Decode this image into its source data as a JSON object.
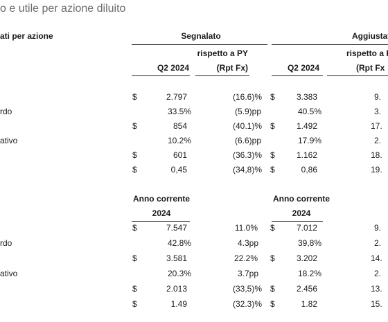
{
  "title": "o e utile per azione diluito",
  "header": {
    "row_label": "ati per azione",
    "reported": "Segnalato",
    "adjusted": "Aggiustato",
    "vs_py_line1": "rispetto a PY",
    "vs_py_line2": "(Rpt Fx)",
    "vs_py_line1_adj": "rispetto a P",
    "vs_py_line2_adj": "(Rpt Fx",
    "q2": "Q2 2024",
    "q2_adj": "Q2 2024"
  },
  "section1": {
    "rows": [
      {
        "label": "",
        "cur1": "$",
        "rep": "2.797",
        "chg": "(16.6)%",
        "cur2": "$",
        "adj": "3.383",
        "adjchg": "9."
      },
      {
        "label": "rdo",
        "cur1": "",
        "rep": "33.5%",
        "chg": "(5.9)pp",
        "cur2": "",
        "adj": "40.5%",
        "adjchg": "3."
      },
      {
        "label": "",
        "cur1": "$",
        "rep": "854",
        "chg": "(40.1)%",
        "cur2": "$",
        "adj": "1.492",
        "adjchg": "17."
      },
      {
        "label": "ativo",
        "cur1": "",
        "rep": "10.2%",
        "chg": "(6.6)pp",
        "cur2": "",
        "adj": "17.9%",
        "adjchg": "2."
      },
      {
        "label": "",
        "cur1": "$",
        "rep": "601",
        "chg": "(36.3)%",
        "cur2": "$",
        "adj": "1.162",
        "adjchg": "18."
      },
      {
        "label": "",
        "cur1": "$",
        "rep": "0,45",
        "chg": "(34,8)%",
        "cur2": "$",
        "adj": "0,86",
        "adjchg": "19."
      }
    ]
  },
  "section2": {
    "header_ytd": "Anno corrente",
    "header_ytd_adj": "Anno corrente",
    "year": "2024",
    "year_adj": "2024",
    "rows": [
      {
        "label": "",
        "cur1": "$",
        "rep": "7.547",
        "chg": "11.0%",
        "cur2": "$",
        "adj": "7.012",
        "adjchg": "9."
      },
      {
        "label": "rdo",
        "cur1": "",
        "rep": "42.8%",
        "chg": "4.3pp",
        "cur2": "",
        "adj": "39,8%",
        "adjchg": "2."
      },
      {
        "label": "",
        "cur1": "$",
        "rep": "3.581",
        "chg": "22.2%",
        "cur2": "$",
        "adj": "3.202",
        "adjchg": "14."
      },
      {
        "label": "ativo",
        "cur1": "",
        "rep": "20.3%",
        "chg": "3.7pp",
        "cur2": "",
        "adj": "18.2%",
        "adjchg": "2."
      },
      {
        "label": "",
        "cur1": "$",
        "rep": "2.013",
        "chg": "(33,5)%",
        "cur2": "$",
        "adj": "2.456",
        "adjchg": "13."
      },
      {
        "label": "",
        "cur1": "$",
        "rep": "1.49",
        "chg": "(32.3)%",
        "cur2": "$",
        "adj": "1.82",
        "adjchg": "15."
      }
    ]
  }
}
